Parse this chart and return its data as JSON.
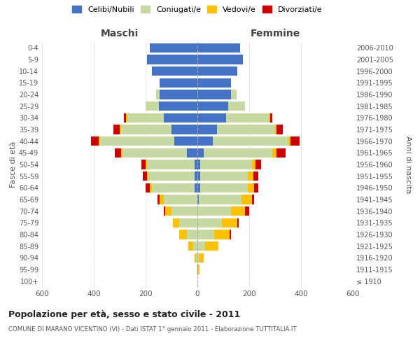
{
  "age_groups": [
    "100+",
    "95-99",
    "90-94",
    "85-89",
    "80-84",
    "75-79",
    "70-74",
    "65-69",
    "60-64",
    "55-59",
    "50-54",
    "45-49",
    "40-44",
    "35-39",
    "30-34",
    "25-29",
    "20-24",
    "15-19",
    "10-14",
    "5-9",
    "0-4"
  ],
  "birth_years": [
    "≤ 1910",
    "1911-1915",
    "1916-1920",
    "1921-1925",
    "1926-1930",
    "1931-1935",
    "1936-1940",
    "1941-1945",
    "1946-1950",
    "1951-1955",
    "1956-1960",
    "1961-1965",
    "1966-1970",
    "1971-1975",
    "1976-1980",
    "1981-1985",
    "1986-1990",
    "1991-1995",
    "1996-2000",
    "2001-2005",
    "2006-2010"
  ],
  "males": {
    "celibe": [
      0,
      0,
      0,
      0,
      0,
      0,
      0,
      0,
      10,
      10,
      10,
      40,
      90,
      100,
      130,
      150,
      145,
      145,
      175,
      195,
      185
    ],
    "coniugato": [
      0,
      2,
      5,
      15,
      40,
      70,
      100,
      130,
      165,
      180,
      185,
      250,
      285,
      195,
      140,
      50,
      15,
      0,
      0,
      0,
      0
    ],
    "vedovo": [
      0,
      2,
      5,
      20,
      30,
      25,
      25,
      15,
      10,
      5,
      5,
      5,
      5,
      5,
      5,
      0,
      0,
      0,
      0,
      0,
      0
    ],
    "divorziato": [
      0,
      0,
      0,
      0,
      0,
      0,
      5,
      10,
      15,
      15,
      15,
      25,
      30,
      25,
      10,
      0,
      0,
      0,
      0,
      0,
      0
    ]
  },
  "females": {
    "nubile": [
      0,
      0,
      0,
      0,
      0,
      0,
      0,
      5,
      10,
      10,
      10,
      25,
      60,
      75,
      110,
      120,
      130,
      130,
      155,
      175,
      165
    ],
    "coniugata": [
      0,
      2,
      5,
      30,
      65,
      95,
      130,
      165,
      185,
      185,
      200,
      265,
      290,
      225,
      165,
      65,
      20,
      0,
      0,
      0,
      0
    ],
    "vedova": [
      0,
      5,
      20,
      50,
      60,
      60,
      55,
      40,
      25,
      20,
      15,
      15,
      10,
      5,
      5,
      0,
      0,
      0,
      0,
      0,
      0
    ],
    "divorziata": [
      0,
      0,
      0,
      0,
      5,
      5,
      15,
      10,
      15,
      20,
      20,
      35,
      35,
      25,
      10,
      0,
      0,
      0,
      0,
      0,
      0
    ]
  },
  "colors": {
    "celibe": "#4472c4",
    "coniugato": "#c5d9a0",
    "vedovo": "#ffc000",
    "divorziato": "#cc0000"
  },
  "xlim": 600,
  "title": "Popolazione per età, sesso e stato civile - 2011",
  "subtitle": "COMUNE DI MARANO VICENTINO (VI) - Dati ISTAT 1° gennaio 2011 - Elaborazione TUTTITALIA.IT",
  "xlabel_left": "Maschi",
  "xlabel_right": "Femmine",
  "ylabel_left": "Fasce di età",
  "ylabel_right": "Anni di nascita",
  "legend_labels": [
    "Celibi/Nubili",
    "Coniugati/e",
    "Vedovi/e",
    "Divorziati/e"
  ],
  "bg_color": "#ffffff",
  "grid_color": "#cccccc"
}
